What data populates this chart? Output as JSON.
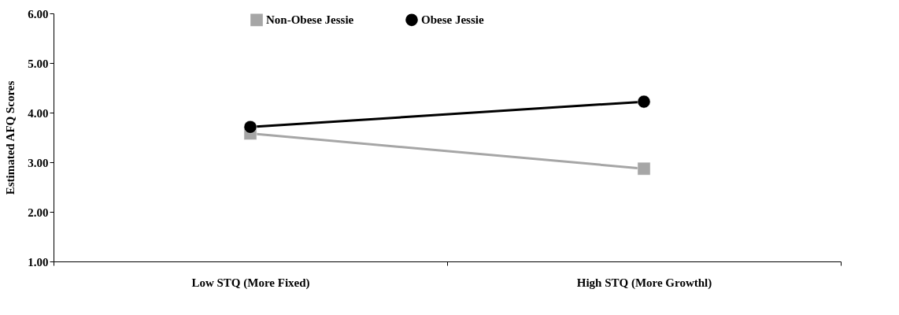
{
  "chart_data": {
    "type": "line",
    "ylabel": "Estimated AFQ Scores",
    "categories": [
      "Low STQ (More Fixed)",
      "High STQ (More Growthl)"
    ],
    "series": [
      {
        "name": "Non-Obese Jessie",
        "color": "#a6a6a6",
        "marker": "square",
        "values": [
          3.58,
          2.87
        ]
      },
      {
        "name": "Obese Jessie",
        "color": "#000000",
        "marker": "circle",
        "values": [
          3.71,
          4.22
        ]
      }
    ],
    "ylim": [
      1,
      6
    ],
    "yticks": [
      {
        "value": 1,
        "label": "1.00"
      },
      {
        "value": 2,
        "label": "2.00"
      },
      {
        "value": 3,
        "label": "3.00"
      },
      {
        "value": 4,
        "label": "4.00"
      },
      {
        "value": 5,
        "label": "5.00"
      },
      {
        "value": 6,
        "label": "6.00"
      }
    ],
    "grid": false,
    "legend": "top",
    "line_style": "solid"
  }
}
